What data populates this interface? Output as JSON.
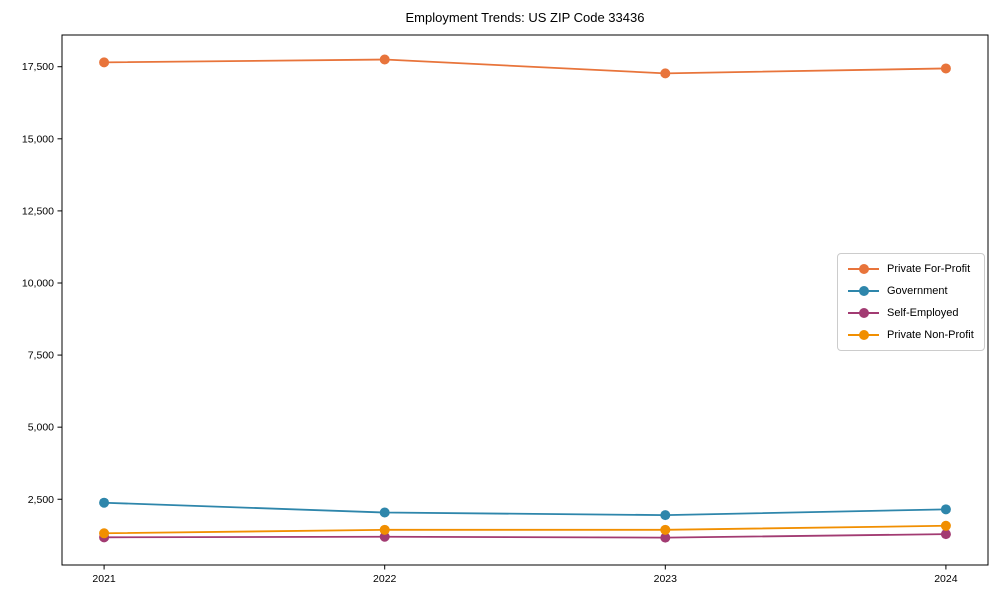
{
  "chart_data": {
    "type": "line",
    "title": "Employment Trends: US ZIP Code 33436",
    "xlabel": "",
    "ylabel": "",
    "x": [
      2021,
      2022,
      2023,
      2024
    ],
    "x_tick_labels": [
      "2021",
      "2022",
      "2023",
      "2024"
    ],
    "y_ticks": [
      2500,
      5000,
      7500,
      10000,
      12500,
      15000,
      17500
    ],
    "y_tick_labels": [
      "2,500",
      "5,000",
      "7,500",
      "10,000",
      "12,500",
      "15,000",
      "17,500"
    ],
    "xlim": [
      2020.85,
      2024.15
    ],
    "ylim": [
      220,
      18600
    ],
    "grid": false,
    "legend_position": "center-right",
    "series": [
      {
        "name": "Private For-Profit",
        "color": "#E8743B",
        "values": [
          17650,
          17750,
          17270,
          17440
        ]
      },
      {
        "name": "Government",
        "color": "#2E86AB",
        "values": [
          2380,
          2040,
          1950,
          2150
        ]
      },
      {
        "name": "Self-Employed",
        "color": "#A23B72",
        "values": [
          1180,
          1200,
          1170,
          1290
        ]
      },
      {
        "name": "Private Non-Profit",
        "color": "#F18F01",
        "values": [
          1320,
          1440,
          1440,
          1580
        ]
      }
    ]
  }
}
